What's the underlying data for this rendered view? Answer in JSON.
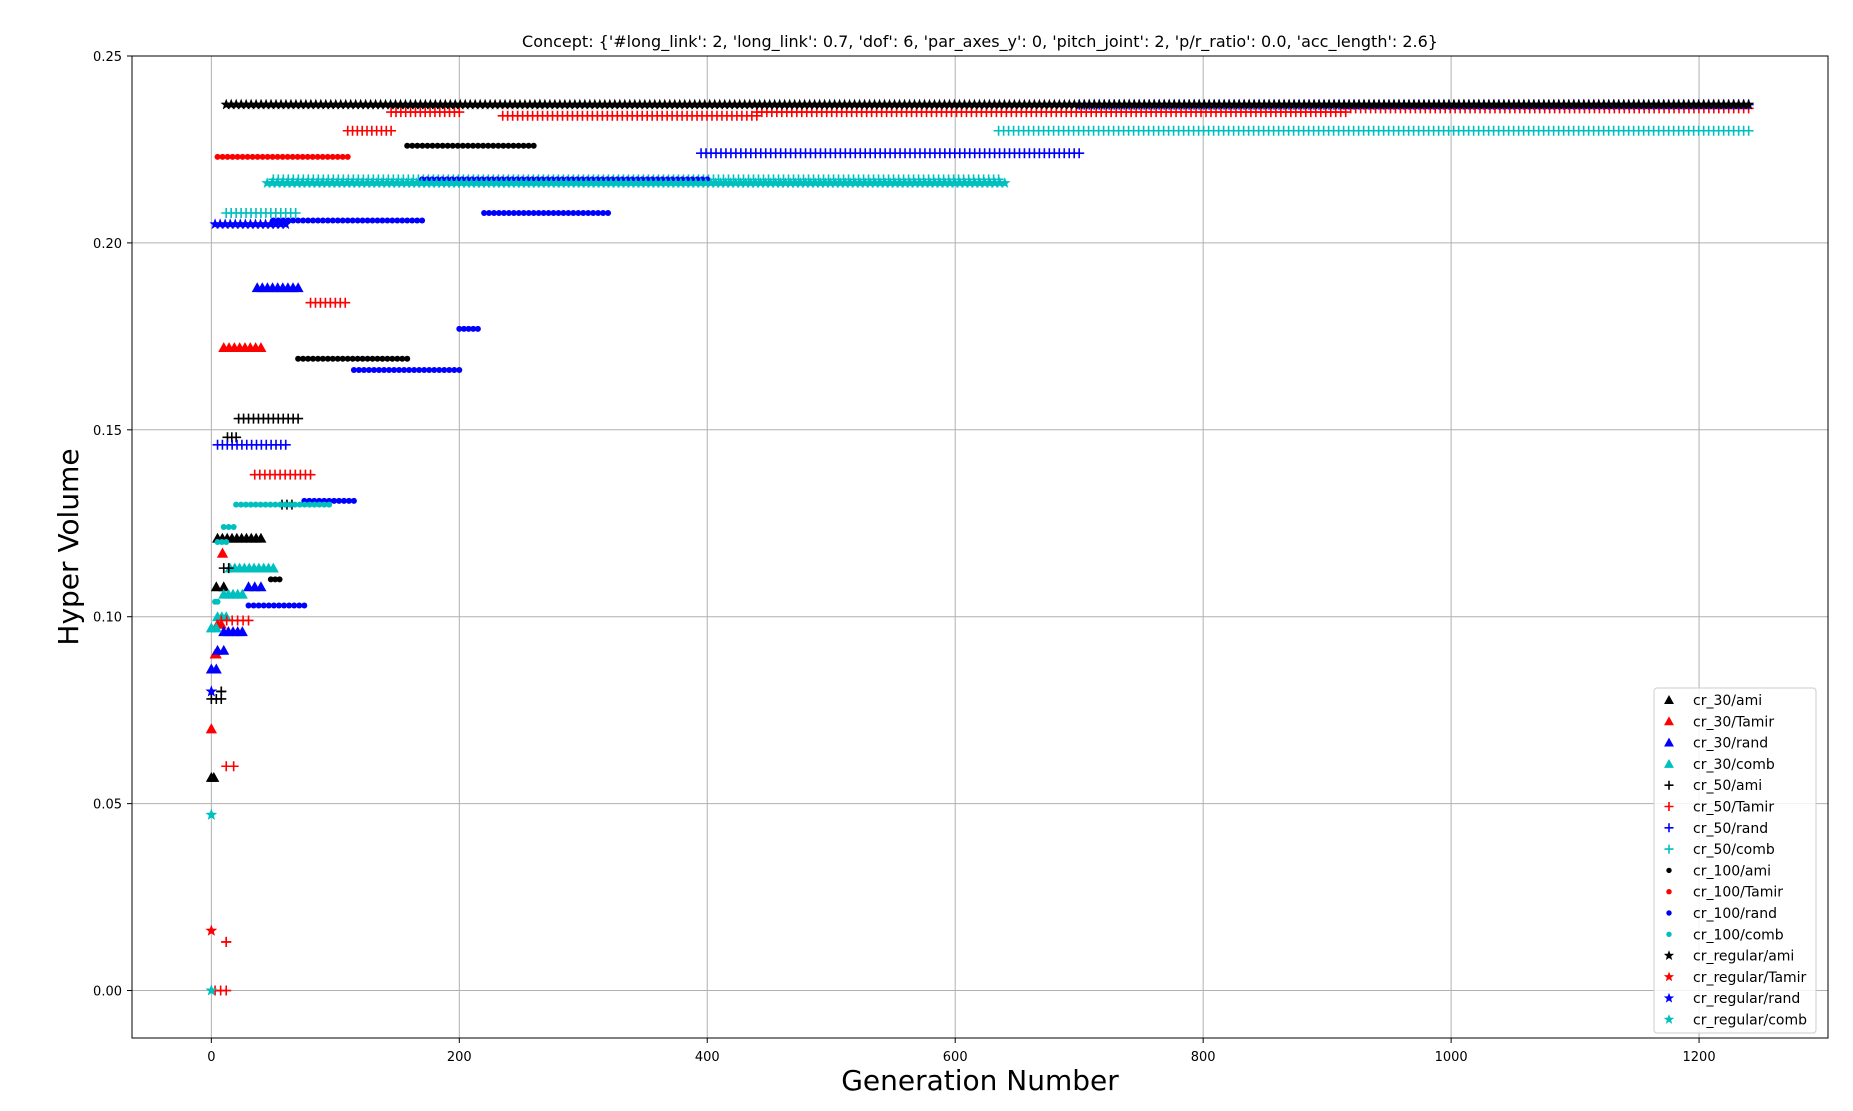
{
  "chart_data": {
    "type": "scatter",
    "title": "Concept: {'#long_link': 2, 'long_link': 0.7, 'dof': 6, 'par_axes_y': 0, 'pitch_joint': 2, 'p/r_ratio': 0.0, 'acc_length': 2.6}",
    "xlabel": "Generation Number",
    "ylabel": "Hyper Volume",
    "xlim": [
      -64,
      1304
    ],
    "ylim": [
      -0.0127,
      0.25
    ],
    "xticks": [
      0,
      200,
      400,
      600,
      800,
      1000,
      1200
    ],
    "yticks": [
      0.0,
      0.05,
      0.1,
      0.15,
      0.2,
      0.25
    ],
    "xtick_labels": [
      "0",
      "200",
      "400",
      "600",
      "800",
      "1000",
      "1200"
    ],
    "ytick_labels": [
      "0.00",
      "0.05",
      "0.10",
      "0.15",
      "0.20",
      "0.25"
    ],
    "grid": true,
    "legend_position": "lower-right",
    "series": [
      {
        "name": "cr_30/ami",
        "marker": "triangle",
        "color": "#000000",
        "segments": [
          [
            0,
            2,
            0.057
          ],
          [
            4,
            10,
            0.108
          ],
          [
            5,
            40,
            0.121
          ]
        ]
      },
      {
        "name": "cr_30/Tamir",
        "marker": "triangle",
        "color": "#ff0000",
        "segments": [
          [
            0,
            0,
            0.07
          ],
          [
            3,
            4,
            0.09
          ],
          [
            5,
            8,
            0.098
          ],
          [
            9,
            9,
            0.117
          ],
          [
            10,
            40,
            0.172
          ]
        ]
      },
      {
        "name": "cr_30/rand",
        "marker": "triangle",
        "color": "#0000ff",
        "segments": [
          [
            0,
            4,
            0.086
          ],
          [
            5,
            10,
            0.091
          ],
          [
            10,
            25,
            0.096
          ],
          [
            30,
            40,
            0.108
          ],
          [
            37,
            70,
            0.188
          ]
        ]
      },
      {
        "name": "cr_30/comb",
        "marker": "triangle",
        "color": "#00bfbf",
        "segments": [
          [
            0,
            4,
            0.097
          ],
          [
            5,
            12,
            0.1
          ],
          [
            10,
            25,
            0.106
          ],
          [
            15,
            50,
            0.113
          ]
        ]
      },
      {
        "name": "cr_50/ami",
        "marker": "plus",
        "color": "#000000",
        "segments": [
          [
            0,
            8,
            0.078
          ],
          [
            8,
            8,
            0.08
          ],
          [
            10,
            14,
            0.113
          ],
          [
            13,
            20,
            0.148
          ],
          [
            22,
            70,
            0.153
          ],
          [
            57,
            65,
            0.13
          ]
        ]
      },
      {
        "name": "cr_50/Tamir",
        "marker": "plus",
        "color": "#ff0000",
        "segments": [
          [
            3,
            12,
            0.0
          ],
          [
            12,
            12,
            0.013
          ],
          [
            12,
            18,
            0.06
          ],
          [
            8,
            30,
            0.099
          ],
          [
            35,
            80,
            0.138
          ],
          [
            80,
            108,
            0.184
          ],
          [
            110,
            145,
            0.23
          ],
          [
            145,
            200,
            0.235
          ],
          [
            235,
            440,
            0.234
          ],
          [
            440,
            915,
            0.235
          ],
          [
            915,
            1240,
            0.236
          ]
        ]
      },
      {
        "name": "cr_50/rand",
        "marker": "plus",
        "color": "#0000ff",
        "segments": [
          [
            5,
            60,
            0.146
          ],
          [
            395,
            700,
            0.224
          ],
          [
            700,
            1240,
            0.237
          ]
        ]
      },
      {
        "name": "cr_50/comb",
        "marker": "plus",
        "color": "#00bfbf",
        "segments": [
          [
            12,
            68,
            0.208
          ],
          [
            50,
            635,
            0.217
          ],
          [
            635,
            1240,
            0.23
          ]
        ]
      },
      {
        "name": "cr_100/ami",
        "marker": "dot",
        "color": "#000000",
        "segments": [
          [
            48,
            55,
            0.11
          ],
          [
            70,
            158,
            0.169
          ],
          [
            158,
            260,
            0.226
          ]
        ]
      },
      {
        "name": "cr_100/Tamir",
        "marker": "dot",
        "color": "#ff0000",
        "segments": [
          [
            5,
            110,
            0.223
          ]
        ]
      },
      {
        "name": "cr_100/rand",
        "marker": "dot",
        "color": "#0000ff",
        "segments": [
          [
            30,
            75,
            0.103
          ],
          [
            75,
            115,
            0.131
          ],
          [
            115,
            200,
            0.166
          ],
          [
            200,
            215,
            0.177
          ],
          [
            220,
            320,
            0.208
          ],
          [
            50,
            170,
            0.206
          ],
          [
            170,
            400,
            0.217
          ]
        ]
      },
      {
        "name": "cr_100/comb",
        "marker": "dot",
        "color": "#00bfbf",
        "segments": [
          [
            3,
            5,
            0.104
          ],
          [
            5,
            12,
            0.12
          ],
          [
            10,
            18,
            0.124
          ],
          [
            20,
            95,
            0.13
          ]
        ]
      },
      {
        "name": "cr_regular/ami",
        "marker": "star",
        "color": "#000000",
        "segments": [
          [
            12,
            265,
            0.237
          ],
          [
            265,
            1240,
            0.237
          ]
        ]
      },
      {
        "name": "cr_regular/Tamir",
        "marker": "star",
        "color": "#ff0000",
        "segments": [
          [
            0,
            0,
            0.016
          ]
        ]
      },
      {
        "name": "cr_regular/rand",
        "marker": "star",
        "color": "#0000ff",
        "segments": [
          [
            0,
            0,
            0.08
          ],
          [
            3,
            60,
            0.205
          ]
        ]
      },
      {
        "name": "cr_regular/comb",
        "marker": "star",
        "color": "#00bfbf",
        "segments": [
          [
            0,
            0,
            0.047
          ],
          [
            0,
            0,
            0.0
          ],
          [
            45,
            640,
            0.216
          ]
        ]
      }
    ]
  }
}
